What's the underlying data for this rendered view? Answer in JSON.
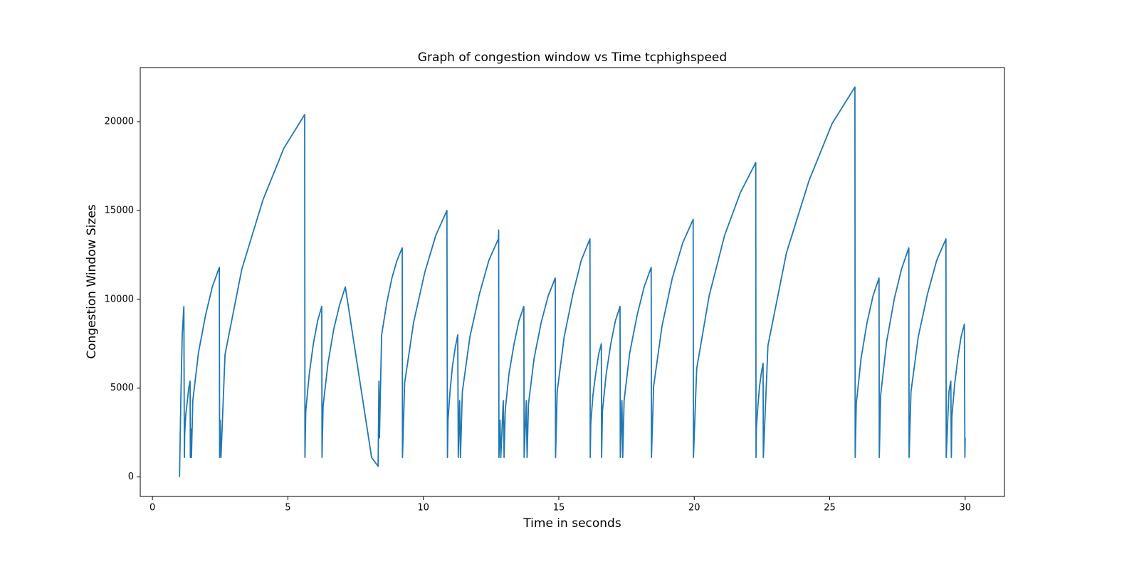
{
  "chart_data": {
    "type": "line",
    "title": "Graph of congestion window vs Time tcphighspeed",
    "x_label": "Time in seconds",
    "y_label": "Congestion Window Sizes",
    "color": "#1f77b4",
    "xlim": [
      -0.45,
      31.45
    ],
    "ylim": [
      -1097,
      23047
    ],
    "xticks": [
      0,
      5,
      10,
      15,
      20,
      25,
      30
    ],
    "yticks": [
      0,
      5000,
      10000,
      15000,
      20000
    ],
    "x": [
      1.0,
      1.05,
      1.1,
      1.16,
      1.18,
      1.19,
      1.23,
      1.29,
      1.34,
      1.39,
      1.4,
      1.42,
      1.44,
      1.49,
      1.7,
      1.96,
      2.21,
      2.47,
      2.48,
      2.5,
      2.53,
      2.68,
      3.3,
      4.08,
      4.85,
      5.62,
      5.63,
      5.66,
      5.79,
      5.94,
      6.1,
      6.25,
      6.26,
      6.3,
      6.48,
      6.69,
      6.91,
      7.12,
      8.09,
      8.33,
      8.36,
      8.38,
      8.46,
      8.65,
      8.84,
      9.03,
      9.22,
      9.23,
      9.31,
      9.64,
      10.05,
      10.46,
      10.87,
      10.89,
      10.91,
      10.99,
      11.08,
      11.18,
      11.27,
      11.29,
      11.34,
      11.37,
      11.44,
      11.72,
      12.07,
      12.42,
      12.77,
      12.78,
      12.79,
      12.83,
      12.86,
      12.95,
      12.98,
      13.02,
      13.16,
      13.35,
      13.53,
      13.71,
      13.72,
      13.8,
      13.83,
      13.88,
      14.09,
      14.35,
      14.61,
      14.87,
      14.88,
      14.94,
      15.2,
      15.52,
      15.83,
      16.15,
      16.16,
      16.18,
      16.26,
      16.37,
      16.47,
      16.57,
      16.58,
      16.61,
      16.75,
      16.92,
      17.09,
      17.26,
      17.27,
      17.33,
      17.36,
      17.41,
      17.62,
      17.89,
      18.15,
      18.41,
      18.42,
      18.5,
      18.81,
      19.19,
      19.58,
      19.96,
      19.97,
      20.09,
      20.55,
      21.12,
      21.7,
      22.27,
      22.28,
      22.29,
      22.35,
      22.41,
      22.48,
      22.54,
      22.55,
      22.72,
      23.4,
      24.24,
      25.09,
      25.93,
      25.94,
      25.98,
      26.16,
      26.38,
      26.6,
      26.82,
      26.83,
      26.88,
      27.1,
      27.38,
      27.65,
      27.92,
      27.93,
      28.0,
      28.27,
      28.61,
      28.95,
      29.29,
      29.3,
      29.4,
      29.47,
      29.49,
      29.51,
      29.61,
      29.73,
      29.85,
      29.97,
      29.99,
      30.0
    ],
    "values": [
      0,
      4500,
      8000,
      9600,
      1100,
      2400,
      3500,
      4300,
      5000,
      5400,
      1100,
      2700,
      1100,
      4300,
      7000,
      9100,
      10700,
      11800,
      1100,
      3200,
      1100,
      6900,
      11700,
      15600,
      18500,
      20400,
      1100,
      3700,
      5800,
      7500,
      8800,
      9600,
      1100,
      4000,
      6400,
      8300,
      9700,
      10700,
      1100,
      600,
      5400,
      2200,
      8000,
      9800,
      11200,
      12200,
      12900,
      1100,
      5300,
      8700,
      11500,
      13600,
      15000,
      1100,
      3200,
      4900,
      6300,
      7300,
      8000,
      1100,
      4300,
      1100,
      4800,
      7900,
      10300,
      12200,
      13400,
      13900,
      1100,
      3200,
      1100,
      4300,
      1100,
      3700,
      5800,
      7500,
      8800,
      9600,
      1100,
      4300,
      1100,
      4100,
      6700,
      8700,
      10200,
      11200,
      1100,
      4800,
      7900,
      10300,
      12200,
      13400,
      1100,
      3000,
      4600,
      5900,
      6900,
      7500,
      1100,
      3700,
      5800,
      7500,
      8800,
      9600,
      1100,
      4300,
      1100,
      4300,
      7000,
      9100,
      10700,
      11800,
      1100,
      5100,
      8500,
      11200,
      13200,
      14500,
      1100,
      6100,
      10200,
      13600,
      16000,
      17700,
      1100,
      2700,
      4000,
      5100,
      5900,
      6400,
      1100,
      7400,
      12600,
      16700,
      19900,
      21950,
      1100,
      4100,
      6700,
      8700,
      10200,
      11200,
      1100,
      4600,
      7600,
      10000,
      11700,
      12900,
      1100,
      4800,
      7900,
      10300,
      12200,
      13400,
      1100,
      4800,
      5400,
      1100,
      3400,
      5200,
      6700,
      7900,
      8600,
      1100,
      2200
    ]
  }
}
